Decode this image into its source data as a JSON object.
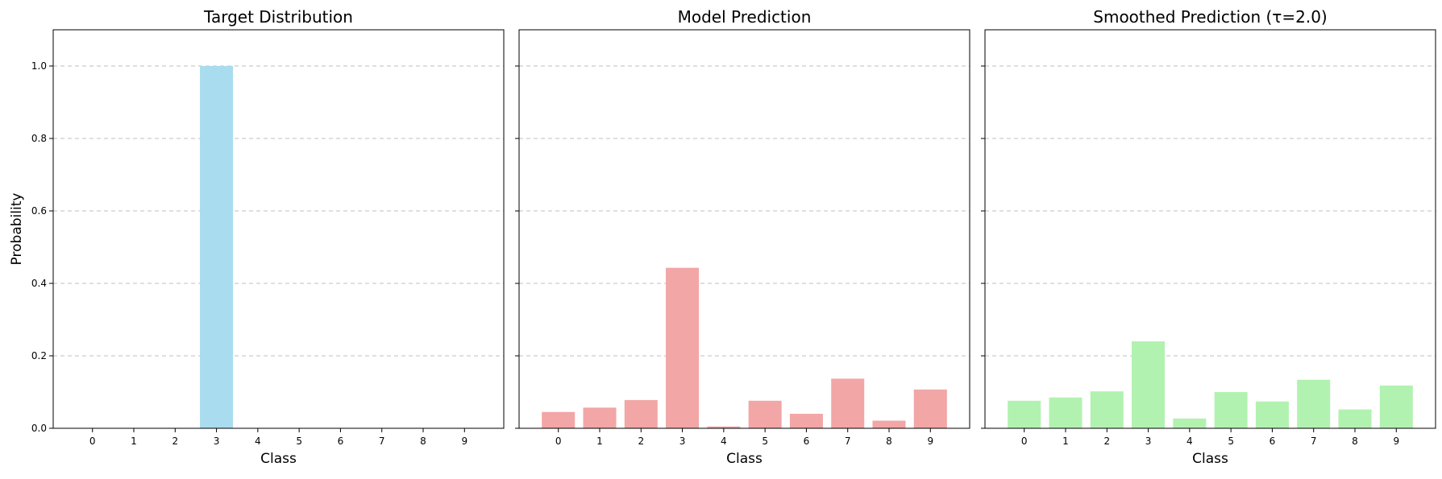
{
  "figure": {
    "shared_ylabel": "Probability"
  },
  "chart_data": [
    {
      "type": "bar",
      "title": "Target Distribution",
      "xlabel": "Class",
      "ylabel": "Probability",
      "categories": [
        "0",
        "1",
        "2",
        "3",
        "4",
        "5",
        "6",
        "7",
        "8",
        "9"
      ],
      "values": [
        0,
        0,
        0,
        1.0,
        0,
        0,
        0,
        0,
        0,
        0
      ],
      "ylim": [
        0,
        1.1
      ],
      "yticks": [
        0.0,
        0.2,
        0.4,
        0.6,
        0.8,
        1.0
      ],
      "ytick_labels": [
        "0.0",
        "0.2",
        "0.4",
        "0.6",
        "0.8",
        "1.0"
      ],
      "grid": "y-dashed",
      "color": "#a9dcee"
    },
    {
      "type": "bar",
      "title": "Model Prediction",
      "xlabel": "Class",
      "categories": [
        "0",
        "1",
        "2",
        "3",
        "4",
        "5",
        "6",
        "7",
        "8",
        "9"
      ],
      "values": [
        0.045,
        0.057,
        0.078,
        0.443,
        0.005,
        0.076,
        0.04,
        0.137,
        0.021,
        0.107
      ],
      "ylim": [
        0,
        1.1
      ],
      "yticks": [
        0.0,
        0.2,
        0.4,
        0.6,
        0.8,
        1.0
      ],
      "grid": "y-dashed",
      "color": "#f2a6a6"
    },
    {
      "type": "bar",
      "title": "Smoothed Prediction (τ=2.0)",
      "xlabel": "Class",
      "categories": [
        "0",
        "1",
        "2",
        "3",
        "4",
        "5",
        "6",
        "7",
        "8",
        "9"
      ],
      "values": [
        0.076,
        0.085,
        0.102,
        0.24,
        0.027,
        0.1,
        0.074,
        0.134,
        0.052,
        0.118
      ],
      "ylim": [
        0,
        1.1
      ],
      "yticks": [
        0.0,
        0.2,
        0.4,
        0.6,
        0.8,
        1.0
      ],
      "grid": "y-dashed",
      "color": "#b2f2b0"
    }
  ]
}
